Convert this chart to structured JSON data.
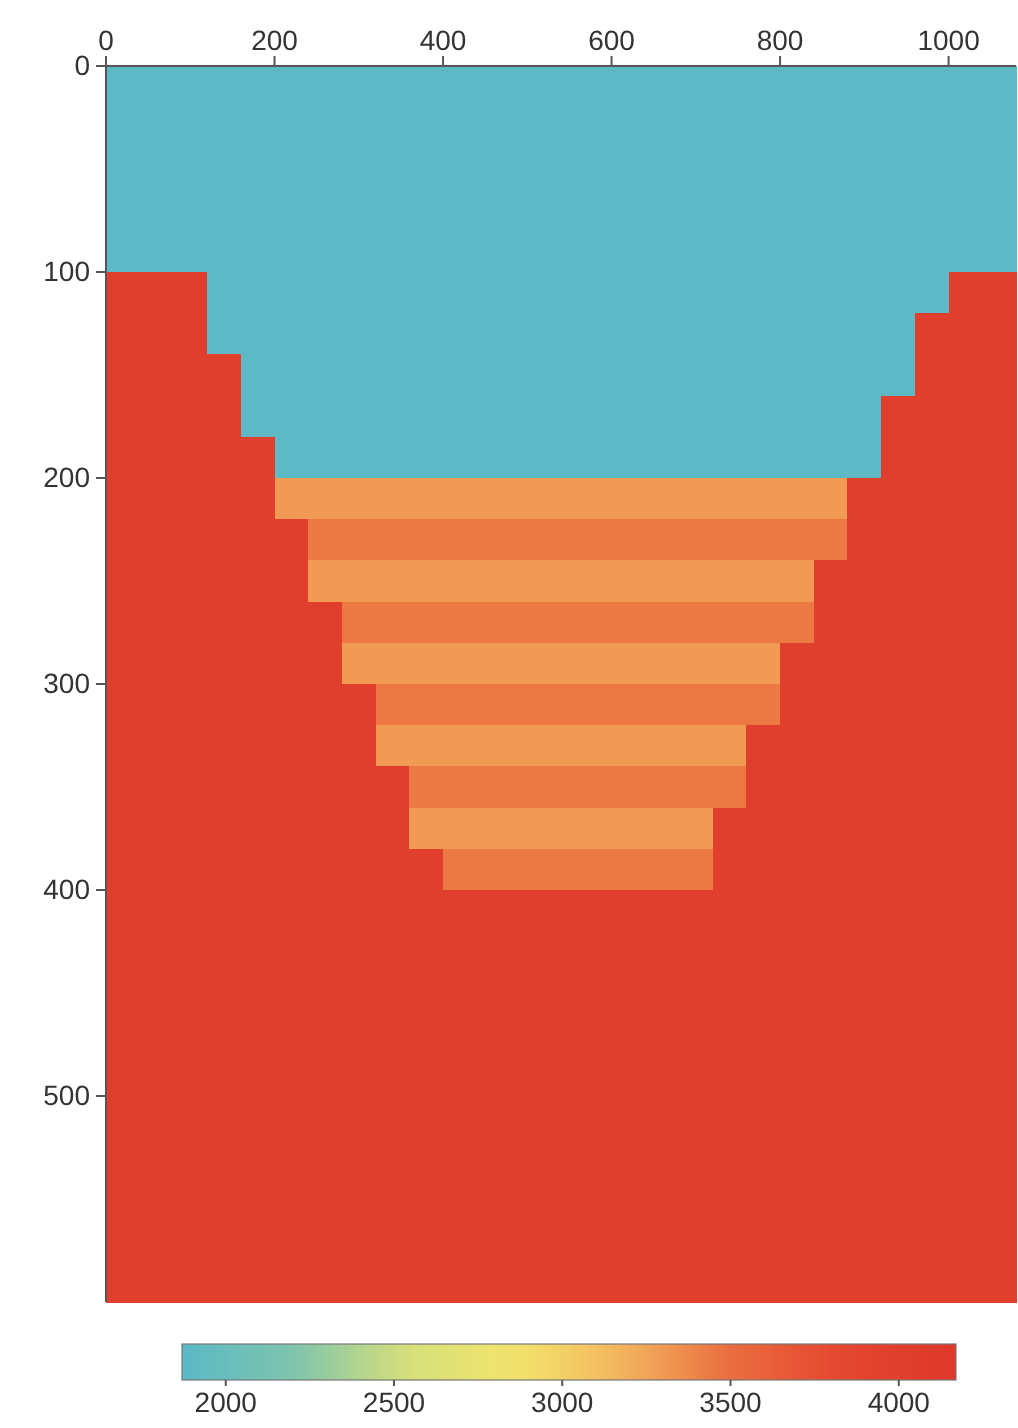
{
  "chart_data": {
    "type": "heatmap",
    "xlim": [
      0,
      1080
    ],
    "xticks": [
      0,
      200,
      400,
      600,
      800,
      1000
    ],
    "ylim": [
      600,
      0
    ],
    "yticks": [
      0,
      100,
      200,
      300,
      400,
      500
    ],
    "clim": [
      1870,
      4170
    ],
    "cticks": [
      2000,
      2500,
      3000,
      3500,
      4000
    ],
    "cells": [
      [
        1900,
        1900,
        1900,
        1900,
        1900,
        1900,
        1900,
        1900,
        1900,
        1900,
        1900,
        1900,
        1900,
        1900,
        1900,
        1900,
        1900,
        1900,
        1900,
        1900,
        1900,
        1900,
        1900,
        1900,
        1900,
        1900,
        1900
      ],
      [
        1900,
        1900,
        1900,
        1900,
        1900,
        1900,
        1900,
        1900,
        1900,
        1900,
        1900,
        1900,
        1900,
        1900,
        1900,
        1900,
        1900,
        1900,
        1900,
        1900,
        1900,
        1900,
        1900,
        1900,
        1900,
        1900,
        1900
      ],
      [
        1900,
        1900,
        1900,
        1900,
        1900,
        1900,
        1900,
        1900,
        1900,
        1900,
        1900,
        1900,
        1900,
        1900,
        1900,
        1900,
        1900,
        1900,
        1900,
        1900,
        1900,
        1900,
        1900,
        1900,
        1900,
        1900,
        1900
      ],
      [
        1900,
        1900,
        1900,
        1900,
        1900,
        1900,
        1900,
        1900,
        1900,
        1900,
        1900,
        1900,
        1900,
        1900,
        1900,
        1900,
        1900,
        1900,
        1900,
        1900,
        1900,
        1900,
        1900,
        1900,
        1900,
        1900,
        1900
      ],
      [
        1900,
        1900,
        1900,
        1900,
        1900,
        1900,
        1900,
        1900,
        1900,
        1900,
        1900,
        1900,
        1900,
        1900,
        1900,
        1900,
        1900,
        1900,
        1900,
        1900,
        1900,
        1900,
        1900,
        1900,
        1900,
        1900,
        1900
      ],
      [
        4000,
        4000,
        4000,
        1900,
        1900,
        1900,
        1900,
        1900,
        1900,
        1900,
        1900,
        1900,
        1900,
        1900,
        1900,
        1900,
        1900,
        1900,
        1900,
        1900,
        1900,
        1900,
        1900,
        1900,
        1900,
        4000,
        4000
      ],
      [
        4000,
        4000,
        4000,
        1900,
        1900,
        1900,
        1900,
        1900,
        1900,
        1900,
        1900,
        1900,
        1900,
        1900,
        1900,
        1900,
        1900,
        1900,
        1900,
        1900,
        1900,
        1900,
        1900,
        1900,
        4000,
        4000,
        4000
      ],
      [
        4000,
        4000,
        4000,
        4000,
        1900,
        1900,
        1900,
        1900,
        1900,
        1900,
        1900,
        1900,
        1900,
        1900,
        1900,
        1900,
        1900,
        1900,
        1900,
        1900,
        1900,
        1900,
        1900,
        1900,
        4000,
        4000,
        4000
      ],
      [
        4000,
        4000,
        4000,
        4000,
        1900,
        1900,
        1900,
        1900,
        1900,
        1900,
        1900,
        1900,
        1900,
        1900,
        1900,
        1900,
        1900,
        1900,
        1900,
        1900,
        1900,
        1900,
        1900,
        4000,
        4000,
        4000,
        4000
      ],
      [
        4000,
        4000,
        4000,
        4000,
        4000,
        1900,
        1900,
        1900,
        1900,
        1900,
        1900,
        1900,
        1900,
        1900,
        1900,
        1900,
        1900,
        1900,
        1900,
        1900,
        1900,
        1900,
        1900,
        4000,
        4000,
        4000,
        4000
      ],
      [
        4000,
        4000,
        4000,
        4000,
        4000,
        3300,
        3300,
        3300,
        3300,
        3300,
        3300,
        3300,
        3300,
        3300,
        3300,
        3300,
        3300,
        3300,
        3300,
        3300,
        3300,
        3300,
        4000,
        4000,
        4000,
        4000,
        4000
      ],
      [
        4000,
        4000,
        4000,
        4000,
        4000,
        4000,
        3450,
        3450,
        3450,
        3450,
        3450,
        3450,
        3450,
        3450,
        3450,
        3450,
        3450,
        3450,
        3450,
        3450,
        3450,
        3450,
        4000,
        4000,
        4000,
        4000,
        4000
      ],
      [
        4000,
        4000,
        4000,
        4000,
        4000,
        4000,
        3300,
        3300,
        3300,
        3300,
        3300,
        3300,
        3300,
        3300,
        3300,
        3300,
        3300,
        3300,
        3300,
        3300,
        3300,
        4000,
        4000,
        4000,
        4000,
        4000,
        4000
      ],
      [
        4000,
        4000,
        4000,
        4000,
        4000,
        4000,
        4000,
        3450,
        3450,
        3450,
        3450,
        3450,
        3450,
        3450,
        3450,
        3450,
        3450,
        3450,
        3450,
        3450,
        3450,
        4000,
        4000,
        4000,
        4000,
        4000,
        4000
      ],
      [
        4000,
        4000,
        4000,
        4000,
        4000,
        4000,
        4000,
        3300,
        3300,
        3300,
        3300,
        3300,
        3300,
        3300,
        3300,
        3300,
        3300,
        3300,
        3300,
        3300,
        4000,
        4000,
        4000,
        4000,
        4000,
        4000,
        4000
      ],
      [
        4000,
        4000,
        4000,
        4000,
        4000,
        4000,
        4000,
        4000,
        3450,
        3450,
        3450,
        3450,
        3450,
        3450,
        3450,
        3450,
        3450,
        3450,
        3450,
        3450,
        4000,
        4000,
        4000,
        4000,
        4000,
        4000,
        4000
      ],
      [
        4000,
        4000,
        4000,
        4000,
        4000,
        4000,
        4000,
        4000,
        3300,
        3300,
        3300,
        3300,
        3300,
        3300,
        3300,
        3300,
        3300,
        3300,
        3300,
        4000,
        4000,
        4000,
        4000,
        4000,
        4000,
        4000,
        4000
      ],
      [
        4000,
        4000,
        4000,
        4000,
        4000,
        4000,
        4000,
        4000,
        4000,
        3450,
        3450,
        3450,
        3450,
        3450,
        3450,
        3450,
        3450,
        3450,
        3450,
        4000,
        4000,
        4000,
        4000,
        4000,
        4000,
        4000,
        4000
      ],
      [
        4000,
        4000,
        4000,
        4000,
        4000,
        4000,
        4000,
        4000,
        4000,
        3300,
        3300,
        3300,
        3300,
        3300,
        3300,
        3300,
        3300,
        3300,
        4000,
        4000,
        4000,
        4000,
        4000,
        4000,
        4000,
        4000,
        4000
      ],
      [
        4000,
        4000,
        4000,
        4000,
        4000,
        4000,
        4000,
        4000,
        4000,
        4000,
        3450,
        3450,
        3450,
        3450,
        3450,
        3450,
        3450,
        3450,
        4000,
        4000,
        4000,
        4000,
        4000,
        4000,
        4000,
        4000,
        4000
      ],
      [
        4000,
        4000,
        4000,
        4000,
        4000,
        4000,
        4000,
        4000,
        4000,
        4000,
        4000,
        4000,
        4000,
        4000,
        4000,
        4000,
        4000,
        4000,
        4000,
        4000,
        4000,
        4000,
        4000,
        4000,
        4000,
        4000,
        4000
      ],
      [
        4000,
        4000,
        4000,
        4000,
        4000,
        4000,
        4000,
        4000,
        4000,
        4000,
        4000,
        4000,
        4000,
        4000,
        4000,
        4000,
        4000,
        4000,
        4000,
        4000,
        4000,
        4000,
        4000,
        4000,
        4000,
        4000,
        4000
      ],
      [
        4000,
        4000,
        4000,
        4000,
        4000,
        4000,
        4000,
        4000,
        4000,
        4000,
        4000,
        4000,
        4000,
        4000,
        4000,
        4000,
        4000,
        4000,
        4000,
        4000,
        4000,
        4000,
        4000,
        4000,
        4000,
        4000,
        4000
      ],
      [
        4000,
        4000,
        4000,
        4000,
        4000,
        4000,
        4000,
        4000,
        4000,
        4000,
        4000,
        4000,
        4000,
        4000,
        4000,
        4000,
        4000,
        4000,
        4000,
        4000,
        4000,
        4000,
        4000,
        4000,
        4000,
        4000,
        4000
      ],
      [
        4000,
        4000,
        4000,
        4000,
        4000,
        4000,
        4000,
        4000,
        4000,
        4000,
        4000,
        4000,
        4000,
        4000,
        4000,
        4000,
        4000,
        4000,
        4000,
        4000,
        4000,
        4000,
        4000,
        4000,
        4000,
        4000,
        4000
      ],
      [
        4000,
        4000,
        4000,
        4000,
        4000,
        4000,
        4000,
        4000,
        4000,
        4000,
        4000,
        4000,
        4000,
        4000,
        4000,
        4000,
        4000,
        4000,
        4000,
        4000,
        4000,
        4000,
        4000,
        4000,
        4000,
        4000,
        4000
      ],
      [
        4000,
        4000,
        4000,
        4000,
        4000,
        4000,
        4000,
        4000,
        4000,
        4000,
        4000,
        4000,
        4000,
        4000,
        4000,
        4000,
        4000,
        4000,
        4000,
        4000,
        4000,
        4000,
        4000,
        4000,
        4000,
        4000,
        4000
      ],
      [
        4000,
        4000,
        4000,
        4000,
        4000,
        4000,
        4000,
        4000,
        4000,
        4000,
        4000,
        4000,
        4000,
        4000,
        4000,
        4000,
        4000,
        4000,
        4000,
        4000,
        4000,
        4000,
        4000,
        4000,
        4000,
        4000,
        4000
      ],
      [
        4000,
        4000,
        4000,
        4000,
        4000,
        4000,
        4000,
        4000,
        4000,
        4000,
        4000,
        4000,
        4000,
        4000,
        4000,
        4000,
        4000,
        4000,
        4000,
        4000,
        4000,
        4000,
        4000,
        4000,
        4000,
        4000,
        4000
      ],
      [
        4000,
        4000,
        4000,
        4000,
        4000,
        4000,
        4000,
        4000,
        4000,
        4000,
        4000,
        4000,
        4000,
        4000,
        4000,
        4000,
        4000,
        4000,
        4000,
        4000,
        4000,
        4000,
        4000,
        4000,
        4000,
        4000,
        4000
      ]
    ]
  }
}
